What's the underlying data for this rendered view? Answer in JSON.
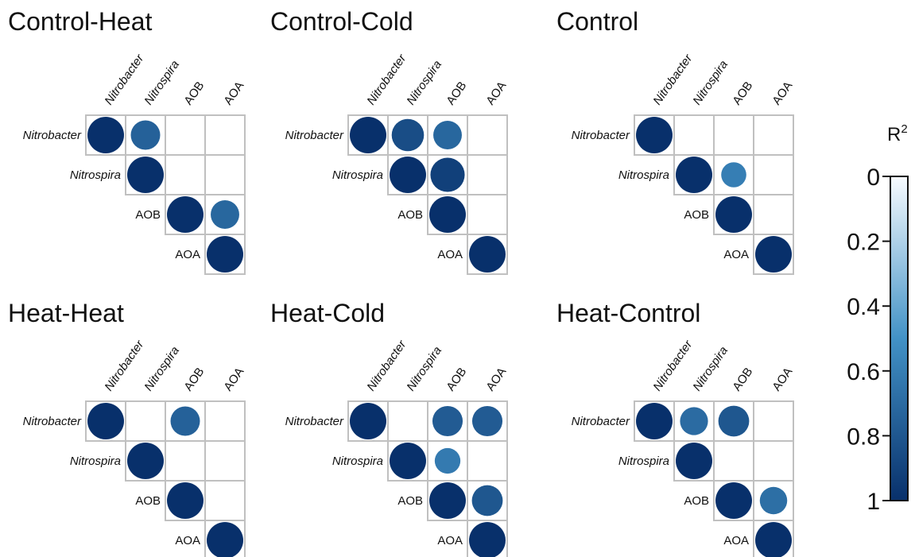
{
  "colors": {
    "low": "#f7fbff",
    "mid": "#4292c6",
    "high": "#08306b",
    "grid": "#c0c0c0"
  },
  "chart_data": {
    "type": "heatmap",
    "variables": [
      {
        "label": "Nitrobacter",
        "italic": true
      },
      {
        "label": "Nitrospira",
        "italic": true
      },
      {
        "label": "AOB",
        "italic": false
      },
      {
        "label": "AOA",
        "italic": false
      }
    ],
    "panels": [
      {
        "title": "Control-Heat",
        "r2": [
          [
            1.0,
            0.75,
            null,
            null
          ],
          [
            null,
            1.0,
            null,
            null
          ],
          [
            null,
            null,
            1.0,
            0.72
          ],
          [
            null,
            null,
            null,
            1.0
          ]
        ]
      },
      {
        "title": "Control-Cold",
        "r2": [
          [
            1.0,
            0.85,
            0.72,
            null
          ],
          [
            null,
            1.0,
            0.92,
            null
          ],
          [
            null,
            null,
            1.0,
            null
          ],
          [
            null,
            null,
            null,
            1.0
          ]
        ]
      },
      {
        "title": "Control",
        "r2": [
          [
            1.0,
            null,
            null,
            null
          ],
          [
            null,
            1.0,
            0.6,
            null
          ],
          [
            null,
            null,
            1.0,
            null
          ],
          [
            null,
            null,
            null,
            1.0
          ]
        ]
      },
      {
        "title": "Heat-Heat",
        "r2": [
          [
            1.0,
            null,
            0.75,
            null
          ],
          [
            null,
            1.0,
            null,
            null
          ],
          [
            null,
            null,
            1.0,
            null
          ],
          [
            null,
            null,
            null,
            1.0
          ]
        ]
      },
      {
        "title": "Heat-Cold",
        "r2": [
          [
            1.0,
            null,
            0.78,
            0.78
          ],
          [
            null,
            1.0,
            0.62,
            null
          ],
          [
            null,
            null,
            1.0,
            0.8
          ],
          [
            null,
            null,
            null,
            1.0
          ]
        ]
      },
      {
        "title": "Heat-Control",
        "r2": [
          [
            1.0,
            0.7,
            0.8,
            null
          ],
          [
            null,
            1.0,
            null,
            null
          ],
          [
            null,
            null,
            1.0,
            0.68
          ],
          [
            null,
            null,
            null,
            1.0
          ]
        ]
      }
    ],
    "colorbar": {
      "title": "R",
      "title_superscript": "2",
      "ticks": [
        "0",
        "0.2",
        "0.4",
        "0.6",
        "0.8",
        "1"
      ],
      "range": [
        0,
        1
      ],
      "direction": "down"
    }
  }
}
